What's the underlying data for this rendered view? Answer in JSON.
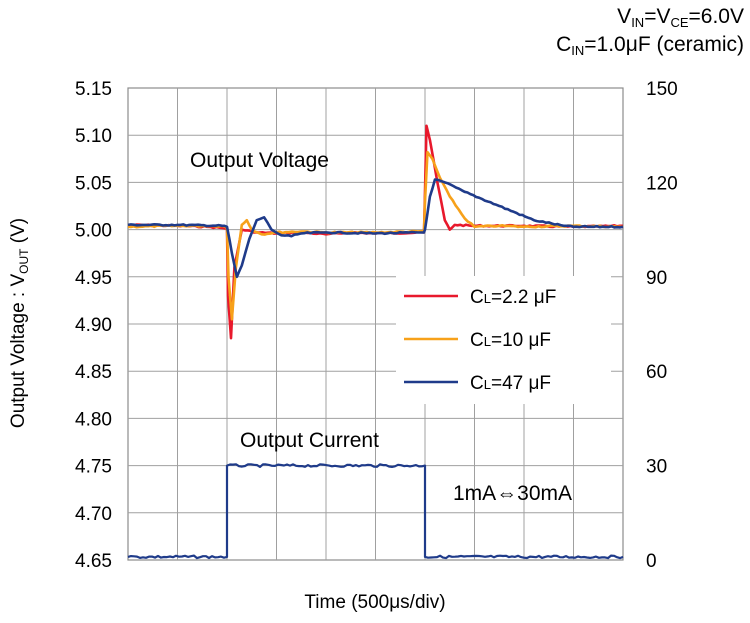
{
  "conditions": {
    "line1_parts": [
      "V",
      "IN",
      "=V",
      "CE",
      "=6.0V"
    ],
    "line2_parts": [
      "C",
      "IN",
      "=1.0μF (ceramic)"
    ]
  },
  "chart_data": {
    "type": "line",
    "title": "",
    "xlabel": "Time (500μs/div)",
    "ylabel_parts": [
      "Output Voltage : V",
      "OUT",
      " (V)"
    ],
    "x_divisions": 10,
    "ylim_left": [
      4.65,
      5.15
    ],
    "yticks_left": [
      "5.15",
      "5.10",
      "5.05",
      "5.00",
      "4.95",
      "4.90",
      "4.85",
      "4.80",
      "4.75",
      "4.70",
      "4.65"
    ],
    "ylim_right": [
      0,
      150
    ],
    "yticks_right": [
      "150",
      "120",
      "90",
      "60",
      "30",
      "0"
    ],
    "grid": true,
    "annotations": {
      "output_voltage": "Output Voltage",
      "output_current": "Output Current",
      "current_step": "1mA⇔30mA"
    },
    "legend_placement": "right-middle",
    "series": [
      {
        "name": "CL=2.2 μF",
        "name_parts": [
          "C",
          "L",
          "=2.2 μF"
        ],
        "color": "#e8192c",
        "axis": "left",
        "x": [
          0,
          1.0,
          1.6,
          1.85,
          2.0,
          2.02,
          2.08,
          2.15,
          2.3,
          2.6,
          3.0,
          3.5,
          4.0,
          4.5,
          5.0,
          5.98,
          6.0,
          6.03,
          6.1,
          6.25,
          6.4,
          6.5,
          6.6,
          7.0,
          8.0,
          9.0,
          10.0
        ],
        "y": [
          5.005,
          5.004,
          5.003,
          5.002,
          5.001,
          4.93,
          4.885,
          4.96,
          5.0,
          4.997,
          4.996,
          4.997,
          4.995,
          4.997,
          4.996,
          4.997,
          5.04,
          5.11,
          5.095,
          5.05,
          5.01,
          5.0,
          5.005,
          5.004,
          5.004,
          5.003,
          5.004
        ]
      },
      {
        "name": "CL=10 μF",
        "name_parts": [
          "C",
          "L",
          "=10 μF"
        ],
        "color": "#f7a11a",
        "axis": "left",
        "x": [
          0,
          1.0,
          1.9,
          2.0,
          2.03,
          2.1,
          2.18,
          2.3,
          2.4,
          2.5,
          2.7,
          3.0,
          3.5,
          4.0,
          5.0,
          5.98,
          6.0,
          6.05,
          6.15,
          6.3,
          6.5,
          6.8,
          7.0,
          7.5,
          8.0,
          9.0,
          10.0
        ],
        "y": [
          5.003,
          5.004,
          5.004,
          5.002,
          4.95,
          4.905,
          4.96,
          5.005,
          5.01,
          5.0,
          4.995,
          4.997,
          4.998,
          4.997,
          4.997,
          4.998,
          5.03,
          5.082,
          5.075,
          5.055,
          5.035,
          5.012,
          5.003,
          5.004,
          5.003,
          5.004,
          5.003
        ]
      },
      {
        "name": "CL=47 μF",
        "name_parts": [
          "C",
          "L",
          "=47 μF"
        ],
        "color": "#1f3b8a",
        "axis": "left",
        "x": [
          0,
          1.0,
          1.95,
          2.0,
          2.1,
          2.2,
          2.3,
          2.45,
          2.6,
          2.75,
          2.9,
          3.1,
          3.3,
          3.5,
          4.0,
          5.0,
          5.98,
          6.0,
          6.1,
          6.2,
          6.4,
          6.8,
          7.5,
          8.2,
          8.8,
          9.0,
          10.0
        ],
        "y": [
          5.005,
          5.005,
          5.004,
          5.003,
          4.975,
          4.95,
          4.962,
          4.99,
          5.01,
          5.013,
          5.0,
          4.994,
          4.993,
          4.996,
          4.997,
          4.996,
          4.997,
          5.0,
          5.035,
          5.053,
          5.05,
          5.04,
          5.025,
          5.01,
          5.004,
          5.003,
          5.003
        ]
      },
      {
        "name": "",
        "color": "#1f3b8a",
        "axis": "right",
        "x": [
          0,
          2.0,
          2.0,
          6.0,
          6.0,
          10.0
        ],
        "y": [
          1,
          1,
          30,
          30,
          1,
          1
        ]
      }
    ]
  }
}
